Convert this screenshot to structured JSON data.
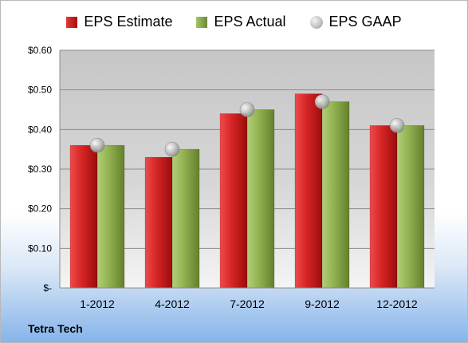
{
  "chart_data": {
    "type": "bar",
    "categories": [
      "1-2012",
      "4-2012",
      "7-2012",
      "9-2012",
      "12-2012"
    ],
    "series": [
      {
        "name": "EPS Estimate",
        "kind": "bar",
        "values": [
          0.36,
          0.33,
          0.44,
          0.49,
          0.41
        ],
        "color": "#c41e1e"
      },
      {
        "name": "EPS Actual",
        "kind": "bar",
        "values": [
          0.36,
          0.35,
          0.45,
          0.47,
          0.41
        ],
        "color": "#8aa84a"
      },
      {
        "name": "EPS GAAP",
        "kind": "marker",
        "values": [
          0.36,
          0.35,
          0.45,
          0.47,
          0.41
        ],
        "color": "#b0b0b0"
      }
    ],
    "ylim": [
      0,
      0.6
    ],
    "yticks": [
      {
        "value": 0,
        "label": "$-"
      },
      {
        "value": 0.1,
        "label": "$0.10"
      },
      {
        "value": 0.2,
        "label": "$0.20"
      },
      {
        "value": 0.3,
        "label": "$0.30"
      },
      {
        "value": 0.4,
        "label": "$0.40"
      },
      {
        "value": 0.5,
        "label": "$0.50"
      },
      {
        "value": 0.6,
        "label": "$0.60"
      }
    ],
    "grid": true,
    "legend_position": "top"
  },
  "footer": {
    "company": "Tetra Tech"
  }
}
